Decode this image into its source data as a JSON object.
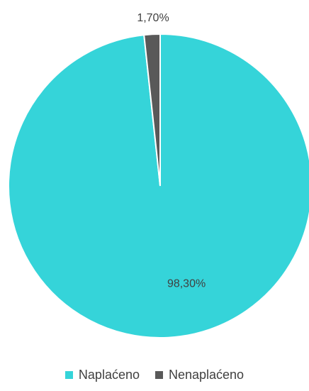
{
  "chart_data": {
    "type": "pie",
    "title": "",
    "categories": [
      "Naplaćeno",
      "Nenaplaćeno"
    ],
    "values": [
      98.3,
      1.7
    ],
    "value_labels": [
      "98,30%",
      "1,70%"
    ],
    "colors": [
      "#35D4D9",
      "#595959"
    ],
    "start_angle_deg": 0,
    "direction": "clockwise",
    "legend": "bottom"
  }
}
